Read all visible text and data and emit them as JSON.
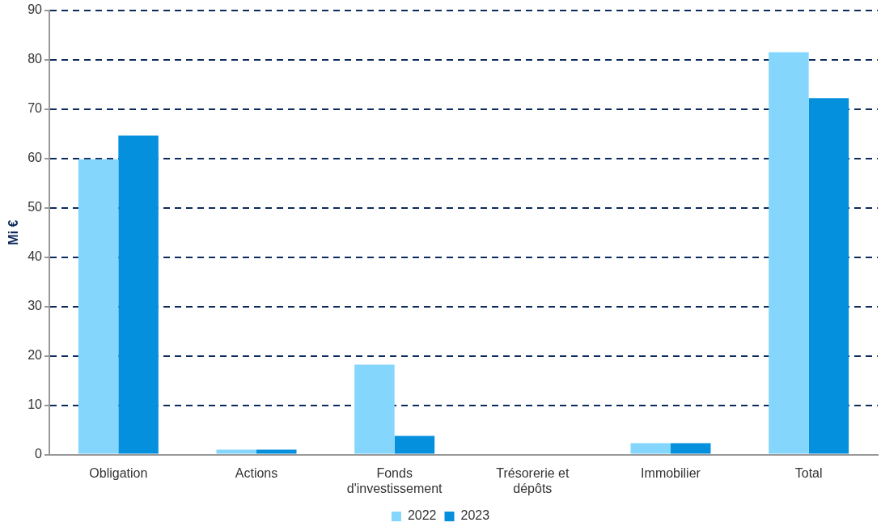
{
  "chart_data": {
    "type": "bar",
    "ylabel": "Mi €",
    "categories": [
      "Obligation",
      "Actions",
      "Fonds d'investissement",
      "Trésorerie et dépôts",
      "Immobilier",
      "Total"
    ],
    "series": [
      {
        "name": "2022",
        "color": "#85d6fd",
        "values": [
          59.8,
          1,
          18.2,
          0,
          2.3,
          81.5
        ]
      },
      {
        "name": "2023",
        "color": "#0590de",
        "values": [
          64.6,
          1,
          3.8,
          0,
          2.3,
          72.2
        ]
      }
    ],
    "ylim": [
      0,
      90
    ],
    "yticks": [
      0,
      10,
      20,
      30,
      40,
      50,
      60,
      70,
      80,
      90
    ],
    "grid": "y",
    "line_style": "dashed",
    "legend": "bottom"
  }
}
